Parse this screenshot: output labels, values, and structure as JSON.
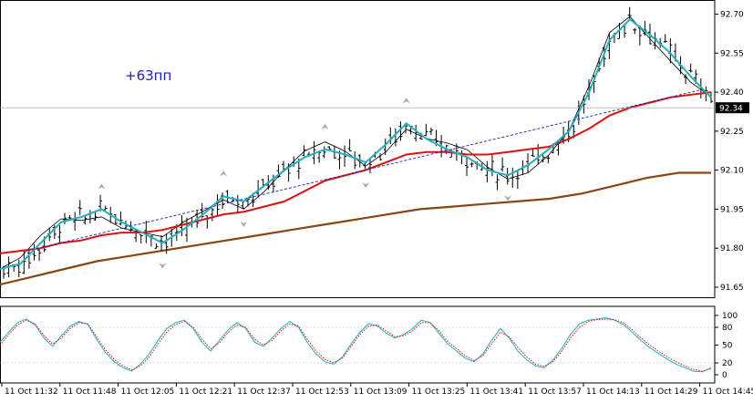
{
  "chart_data": [
    {
      "type": "line",
      "annotation": "+63пп",
      "current_price": "92.34",
      "ylim": [
        91.6,
        92.75
      ],
      "y_ticks": [
        "92.70",
        "92.55",
        "92.40",
        "92.25",
        "92.10",
        "91.95",
        "91.80",
        "91.65"
      ],
      "x_ticks": [
        "11 Oct 11:32",
        "11 Oct 11:48",
        "11 Oct 12:05",
        "11 Oct 12:21",
        "11 Oct 12:37",
        "11 Oct 12:53",
        "11 Oct 13:09",
        "11 Oct 13:25",
        "11 Oct 13:41",
        "11 Oct 13:57",
        "11 Oct 14:13",
        "11 Oct 14:29",
        "11 Oct 14:45"
      ],
      "bar_count": 140,
      "colors": {
        "bars": "#000000",
        "ma_fast": "#20b2c0",
        "ma_mid": "#e01010",
        "ma_slow": "#8b4513",
        "envelope": "#000000",
        "trendline": "#1c1cc8",
        "fractal": "#aaaaaa",
        "current_price_line": "#a0a0a0"
      },
      "series": [
        {
          "values": [
            91.72,
            91.74,
            91.82,
            91.9,
            91.92,
            91.95,
            91.9,
            91.86,
            91.82,
            91.87,
            91.93,
            92.0,
            91.98,
            92.04,
            92.1,
            92.15,
            92.18,
            92.16,
            92.13,
            92.2,
            92.28,
            92.22,
            92.18,
            92.15,
            92.1,
            92.08,
            92.12,
            92.18,
            92.25,
            92.4,
            92.6,
            92.68,
            92.62,
            92.55,
            92.46,
            92.38
          ]
        },
        {
          "values": [
            91.78,
            91.79,
            91.8,
            91.82,
            91.83,
            91.85,
            91.86,
            91.86,
            91.87,
            91.89,
            91.91,
            91.93,
            91.94,
            91.96,
            91.98,
            92.02,
            92.06,
            92.08,
            92.1,
            92.13,
            92.16,
            92.17,
            92.17,
            92.16,
            92.16,
            92.17,
            92.18,
            92.19,
            92.22,
            92.26,
            92.31,
            92.34,
            92.36,
            92.38,
            92.39,
            92.4
          ]
        },
        {
          "values": [
            91.66,
            91.69,
            91.72,
            91.75,
            91.77,
            91.79,
            91.81,
            91.83,
            91.85,
            91.87,
            91.89,
            91.91,
            91.93,
            91.95,
            91.96,
            91.97,
            91.98,
            91.99,
            92.01,
            92.04,
            92.07,
            92.09,
            92.09
          ]
        }
      ]
    },
    {
      "type": "line",
      "ylim": [
        0,
        100
      ],
      "y_ticks": [
        "100",
        "80",
        "50",
        "20",
        "0"
      ],
      "series": [
        {
          "values": [
            55,
            72,
            88,
            94,
            84,
            62,
            48,
            66,
            82,
            90,
            85,
            60,
            38,
            22,
            12,
            6,
            18,
            35,
            58,
            78,
            88,
            92,
            78,
            55,
            40,
            58,
            76,
            88,
            78,
            55,
            48,
            62,
            78,
            90,
            80,
            55,
            35,
            22,
            18,
            30,
            52,
            72,
            86,
            82,
            70,
            62,
            68,
            78,
            92,
            88,
            70,
            52,
            40,
            28,
            22,
            35,
            58,
            78,
            62,
            40,
            25,
            15,
            12,
            25,
            45,
            68,
            86,
            92,
            94,
            96,
            92,
            85,
            72,
            58,
            46,
            36,
            26,
            18,
            12,
            6,
            5,
            12
          ]
        },
        {
          "values": [
            50,
            68,
            84,
            92,
            86,
            66,
            52,
            62,
            78,
            88,
            86,
            64,
            42,
            26,
            15,
            8,
            15,
            30,
            52,
            72,
            85,
            90,
            80,
            60,
            44,
            54,
            72,
            84,
            80,
            60,
            50,
            58,
            74,
            86,
            82,
            60,
            40,
            26,
            20,
            28,
            48,
            68,
            82,
            84,
            74,
            64,
            66,
            74,
            88,
            88,
            74,
            56,
            44,
            32,
            24,
            32,
            52,
            72,
            64,
            46,
            30,
            18,
            14,
            22,
            40,
            62,
            80,
            90,
            93,
            94,
            93,
            88,
            76,
            62,
            50,
            40,
            30,
            22,
            15,
            9,
            6,
            10
          ]
        }
      ]
    }
  ]
}
